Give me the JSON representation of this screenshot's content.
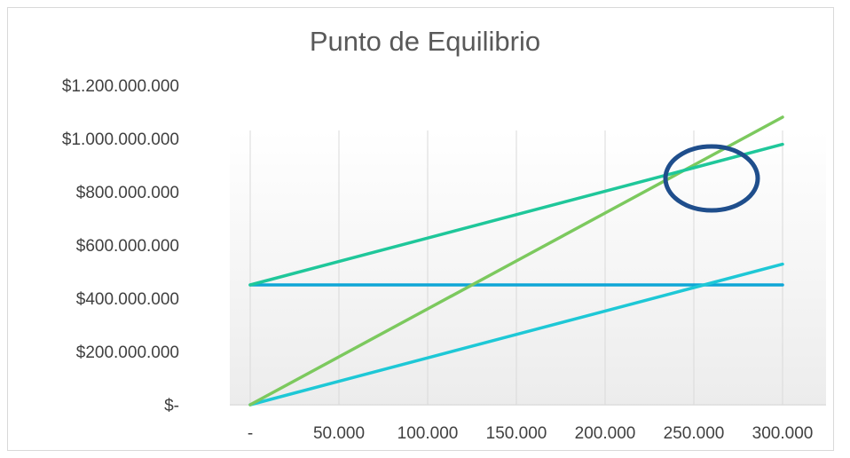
{
  "chart_data": {
    "type": "line",
    "title": "Punto de Equilibrio",
    "xlabel": "",
    "ylabel": "",
    "x": [
      0,
      50000,
      100000,
      150000,
      200000,
      250000,
      300000
    ],
    "x_tick_labels": [
      "-",
      "50.000",
      "100.000",
      "150.000",
      "200.000",
      "250.000",
      "300.000"
    ],
    "y_ticks": [
      0,
      200000000,
      400000000,
      600000000,
      800000000,
      1000000000,
      1200000000
    ],
    "y_tick_labels": [
      "$-",
      "$200.000.000",
      "$400.000.000",
      "$600.000.000",
      "$800.000.000",
      "$1.000.000.000",
      "$1.200.000.000"
    ],
    "xlim": [
      0,
      300000
    ],
    "ylim": [
      0,
      1200000000
    ],
    "grid": "vertical",
    "legend": "none",
    "series": [
      {
        "color": "#1fc79a",
        "values": [
          450000000,
          538000000,
          626000000,
          714000000,
          802000000,
          890000000,
          978000000
        ]
      },
      {
        "color": "#7cc95e",
        "values": [
          0,
          180000000,
          360000000,
          540000000,
          720000000,
          900000000,
          1080000000
        ]
      },
      {
        "color": "#0fa6d6",
        "values": [
          450000000,
          450000000,
          450000000,
          450000000,
          450000000,
          450000000,
          450000000
        ]
      },
      {
        "color": "#1ec8d6",
        "values": [
          0,
          88000000,
          176000000,
          264000000,
          352000000,
          440000000,
          528000000
        ]
      }
    ],
    "annotation": {
      "type": "ellipse",
      "x": 250000,
      "y": 870000000,
      "color": "#1f4e8c"
    }
  }
}
